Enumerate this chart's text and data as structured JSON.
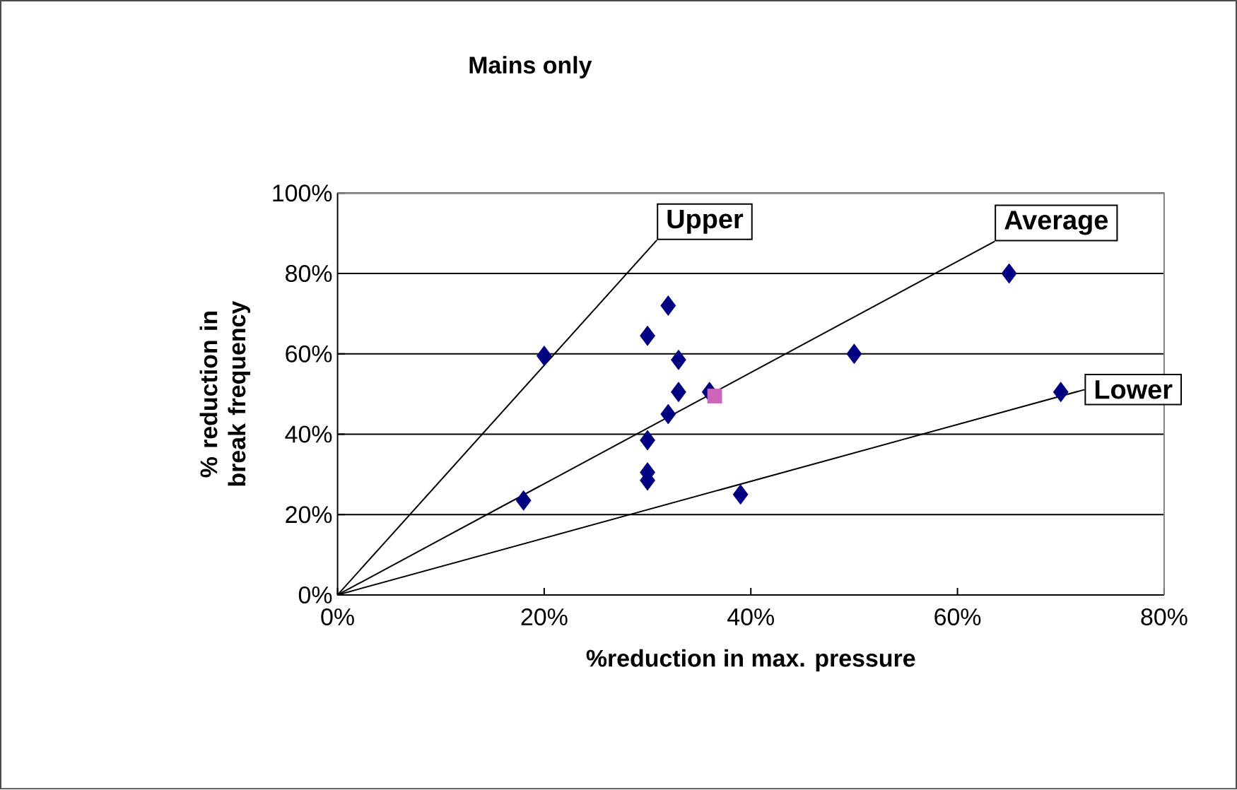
{
  "chart_data": {
    "type": "scatter",
    "title": "Mains only",
    "xlabel": "%reduction in max. pressure",
    "ylabel": "% reduction in break frequency",
    "xlim": [
      0,
      80
    ],
    "ylim": [
      0,
      100
    ],
    "xticks": [
      {
        "value": 0,
        "label": "0%"
      },
      {
        "value": 20,
        "label": "20%"
      },
      {
        "value": 40,
        "label": "40%"
      },
      {
        "value": 60,
        "label": "60%"
      },
      {
        "value": 80,
        "label": "80%"
      }
    ],
    "yticks": [
      {
        "value": 0,
        "label": "0%"
      },
      {
        "value": 20,
        "label": "20%"
      },
      {
        "value": 40,
        "label": "40%"
      },
      {
        "value": 60,
        "label": "60%"
      },
      {
        "value": 80,
        "label": "80%"
      },
      {
        "value": 100,
        "label": "100%"
      }
    ],
    "grid": "y",
    "series": [
      {
        "type": "line",
        "name": "Upper",
        "color": "#000000",
        "marker": "none",
        "x": [
          0,
          30.9
        ],
        "values": [
          0,
          88.3
        ]
      },
      {
        "type": "line",
        "name": "Average",
        "color": "#000000",
        "marker": "none",
        "x": [
          0,
          63.6
        ],
        "values": [
          0,
          88
        ]
      },
      {
        "type": "line",
        "name": "Lower",
        "color": "#000000",
        "marker": "none",
        "x": [
          0,
          72.3
        ],
        "values": [
          0,
          51.1
        ]
      },
      {
        "color": "#000080",
        "marker": "diamond",
        "x": [
          20,
          18,
          32,
          30,
          33,
          33,
          36,
          32,
          30,
          30,
          30,
          39,
          65,
          50,
          70
        ],
        "values": [
          59.5,
          23.5,
          72,
          64.5,
          58.5,
          50.5,
          50.5,
          45,
          38.5,
          30.5,
          28.5,
          25,
          80,
          60,
          50.5
        ]
      },
      {
        "color": "#cc66bb",
        "marker": "square",
        "x": [
          36.5
        ],
        "values": [
          49.5
        ]
      }
    ]
  }
}
